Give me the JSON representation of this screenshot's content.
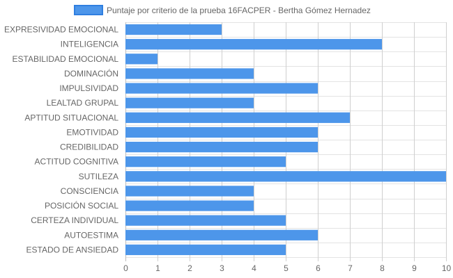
{
  "chart_data": {
    "type": "bar",
    "orientation": "horizontal",
    "legend": {
      "position": "top",
      "color": "#4d96ea",
      "border_color": "#2f7fe0"
    },
    "series": [
      {
        "name": "Puntaje por criterio de la prueba 16FACPER - Bertha Gómez Hernadez",
        "color": "#4d96ea",
        "values": [
          3,
          8,
          1,
          4,
          6,
          4,
          7,
          6,
          6,
          5,
          10,
          4,
          4,
          5,
          6,
          5
        ]
      }
    ],
    "categories": [
      "EXPRESIVIDAD EMOCIONAL",
      "INTELIGENCIA",
      "ESTABILIDAD EMOCIONAL",
      "DOMINACIÓN",
      "IMPULSIVIDAD",
      "LEALTAD GRUPAL",
      "APTITUD SITUACIONAL",
      "EMOTIVIDAD",
      "CREDIBILIDAD",
      "ACTITUD COGNITIVA",
      "SUTILEZA",
      "CONSCIENCIA",
      "POSICIÓN SOCIAL",
      "CERTEZA INDIVIDUAL",
      "AUTOESTIMA",
      "ESTADO DE ANSIEDAD"
    ],
    "xlim": [
      0,
      10
    ],
    "xticks": [
      "0",
      "1",
      "2",
      "3",
      "4",
      "5",
      "6",
      "7",
      "8",
      "9",
      "10"
    ],
    "grid": true
  }
}
